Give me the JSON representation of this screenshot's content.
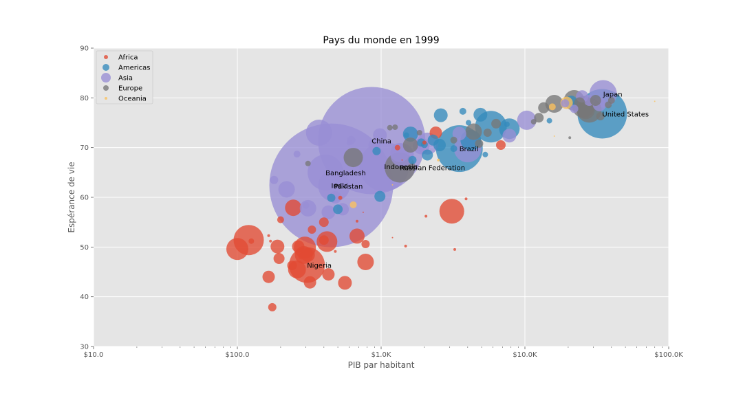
{
  "chart_data": {
    "type": "scatter",
    "title": "Pays du monde en 1999",
    "xlabel": "PIB par habitant",
    "ylabel": "Espérance de vie",
    "xscale": "log",
    "xlim": [
      10,
      100000
    ],
    "ylim": [
      30,
      90
    ],
    "xticks": [
      {
        "value": 10,
        "label": "$10.0"
      },
      {
        "value": 100,
        "label": "$100.0"
      },
      {
        "value": 1000,
        "label": "$1.0K"
      },
      {
        "value": 10000,
        "label": "$10.0K"
      },
      {
        "value": 100000,
        "label": "$100.0K"
      }
    ],
    "yticks": [
      30,
      40,
      50,
      60,
      70,
      80,
      90
    ],
    "grid": true,
    "legend_position": "top-left",
    "series": [
      {
        "name": "Africa",
        "color": "#E24A33",
        "points": [
          [
            100,
            49.6,
            16
          ],
          [
            120,
            51.4,
            22
          ],
          [
            125,
            51.2,
            4
          ],
          [
            165,
            52.3,
            2
          ],
          [
            170,
            51.2,
            2
          ],
          [
            190,
            50.1,
            10
          ],
          [
            195,
            47.7,
            8
          ],
          [
            200,
            55.5,
            5
          ],
          [
            240,
            46.3,
            7
          ],
          [
            245,
            57.9,
            12
          ],
          [
            260,
            45.5,
            13
          ],
          [
            265,
            50.1,
            9
          ],
          [
            280,
            48.2,
            5
          ],
          [
            290,
            48.4,
            13
          ],
          [
            295,
            49.9,
            16
          ],
          [
            305,
            46.4,
            26
          ],
          [
            310,
            48.4,
            10
          ],
          [
            320,
            42.9,
            9
          ],
          [
            330,
            53.5,
            6
          ],
          [
            400,
            55.0,
            7
          ],
          [
            400,
            51.4,
            7
          ],
          [
            420,
            51.1,
            15
          ],
          [
            430,
            44.5,
            9
          ],
          [
            480,
            49.1,
            2
          ],
          [
            520,
            59.9,
            3
          ],
          [
            560,
            42.8,
            10
          ],
          [
            680,
            55.2,
            2
          ],
          [
            680,
            52.2,
            11
          ],
          [
            780,
            50.6,
            6
          ],
          [
            780,
            47.0,
            12
          ],
          [
            1200,
            51.9,
            1
          ],
          [
            1400,
            67.5,
            1
          ],
          [
            1480,
            50.2,
            2
          ],
          [
            2050,
            56.2,
            2
          ],
          [
            2400,
            73.0,
            9
          ],
          [
            3100,
            57.2,
            18
          ],
          [
            3250,
            49.5,
            2
          ],
          [
            3900,
            59.7,
            2
          ],
          [
            6800,
            70.5,
            7
          ],
          [
            165,
            44.0,
            9
          ],
          [
            175,
            37.9,
            6
          ],
          [
            750,
            57.0,
            1
          ],
          [
            2000,
            71.0,
            3
          ],
          [
            1300,
            70.0,
            4
          ]
        ]
      },
      {
        "name": "Americas",
        "color": "#348ABD",
        "points": [
          [
            450,
            59.9,
            6
          ],
          [
            500,
            57.6,
            7
          ],
          [
            930,
            69.3,
            6
          ],
          [
            980,
            60.2,
            8
          ],
          [
            1500,
            72.5,
            4
          ],
          [
            1600,
            72.7,
            11
          ],
          [
            1650,
            67.5,
            6
          ],
          [
            1900,
            71.0,
            6
          ],
          [
            2000,
            70.6,
            5
          ],
          [
            2100,
            68.5,
            8
          ],
          [
            2300,
            71.5,
            8
          ],
          [
            2550,
            70.5,
            9
          ],
          [
            2600,
            76.5,
            10
          ],
          [
            3200,
            69.8,
            5
          ],
          [
            3500,
            69.8,
            34
          ],
          [
            3700,
            77.3,
            5
          ],
          [
            4050,
            75.0,
            4
          ],
          [
            4200,
            71.5,
            15
          ],
          [
            4900,
            76.6,
            10
          ],
          [
            5300,
            68.6,
            4
          ],
          [
            5800,
            74.2,
            23
          ],
          [
            7500,
            74.7,
            4
          ],
          [
            7800,
            73.8,
            15
          ],
          [
            14800,
            75.4,
            4
          ],
          [
            21000,
            79.2,
            9
          ],
          [
            34500,
            76.8,
            36
          ]
        ]
      },
      {
        "name": "Asia",
        "color": "#988ED5",
        "points": [
          [
            180,
            63.5,
            6
          ],
          [
            220,
            61.6,
            12
          ],
          [
            260,
            68.7,
            5
          ],
          [
            300,
            58.4,
            5
          ],
          [
            310,
            57.8,
            12
          ],
          [
            370,
            73.0,
            19
          ],
          [
            410,
            65.0,
            26
          ],
          [
            430,
            57.0,
            10
          ],
          [
            450,
            62.4,
            90
          ],
          [
            470,
            62.3,
            23
          ],
          [
            480,
            60.0,
            9
          ],
          [
            540,
            57.6,
            9
          ],
          [
            600,
            71.0,
            4
          ],
          [
            620,
            71.5,
            6
          ],
          [
            860,
            71.4,
            78
          ],
          [
            900,
            70.5,
            9
          ],
          [
            980,
            72.5,
            10
          ],
          [
            1050,
            66.2,
            36
          ],
          [
            1350,
            69.0,
            14
          ],
          [
            1400,
            68.5,
            17
          ],
          [
            1900,
            70.3,
            12
          ],
          [
            2100,
            70.8,
            16
          ],
          [
            3500,
            72.8,
            10
          ],
          [
            4000,
            69.8,
            20
          ],
          [
            7800,
            72.4,
            10
          ],
          [
            10300,
            75.5,
            14
          ],
          [
            19000,
            78.9,
            6
          ],
          [
            22000,
            77.8,
            6
          ],
          [
            25000,
            80.3,
            9
          ],
          [
            28000,
            79.5,
            8
          ],
          [
            35000,
            80.8,
            20
          ],
          [
            33000,
            78.7,
            10
          ]
        ]
      },
      {
        "name": "Europe",
        "color": "#777777",
        "points": [
          [
            310,
            66.8,
            4
          ],
          [
            640,
            68.0,
            14
          ],
          [
            1150,
            74.0,
            4
          ],
          [
            1250,
            74.1,
            4
          ],
          [
            1350,
            66.0,
            22
          ],
          [
            1600,
            70.5,
            11
          ],
          [
            1850,
            73.0,
            4
          ],
          [
            3200,
            71.5,
            5
          ],
          [
            4400,
            73.2,
            12
          ],
          [
            4800,
            70.8,
            6
          ],
          [
            5500,
            73.0,
            6
          ],
          [
            6300,
            74.8,
            7
          ],
          [
            11500,
            75.2,
            4
          ],
          [
            12500,
            76.0,
            7
          ],
          [
            13500,
            78.0,
            8
          ],
          [
            16000,
            78.8,
            13
          ],
          [
            20500,
            72.0,
            2
          ],
          [
            22000,
            79.5,
            15
          ],
          [
            24000,
            79.0,
            8
          ],
          [
            25500,
            78.2,
            16
          ],
          [
            26500,
            77.5,
            13
          ],
          [
            28000,
            77.5,
            18
          ],
          [
            31000,
            79.5,
            8
          ],
          [
            40000,
            79.5,
            5
          ],
          [
            38000,
            78.6,
            5
          ],
          [
            33500,
            76.3,
            6
          ]
        ]
      },
      {
        "name": "Oceania",
        "color": "#FBC15E",
        "points": [
          [
            640,
            58.5,
            5
          ],
          [
            1200,
            62.5,
            1
          ],
          [
            2500,
            67.5,
            2
          ],
          [
            15500,
            78.2,
            5
          ],
          [
            19500,
            79.0,
            9
          ],
          [
            16000,
            72.3,
            1
          ],
          [
            80000,
            79.3,
            1
          ]
        ]
      }
    ],
    "annotations": [
      {
        "text": "Japan",
        "x": 35000,
        "y": 80.8
      },
      {
        "text": "United States",
        "x": 34500,
        "y": 76.8
      },
      {
        "text": "China",
        "x": 860,
        "y": 71.4
      },
      {
        "text": "Brazil",
        "x": 3500,
        "y": 69.8
      },
      {
        "text": "Indonesia",
        "x": 1050,
        "y": 66.2
      },
      {
        "text": "Russian Federation",
        "x": 1350,
        "y": 66.0
      },
      {
        "text": "Bangladesh",
        "x": 410,
        "y": 65.0
      },
      {
        "text": "Pakistan",
        "x": 470,
        "y": 62.3
      },
      {
        "text": "India",
        "x": 450,
        "y": 62.4
      },
      {
        "text": "Nigeria",
        "x": 305,
        "y": 46.4
      }
    ]
  }
}
